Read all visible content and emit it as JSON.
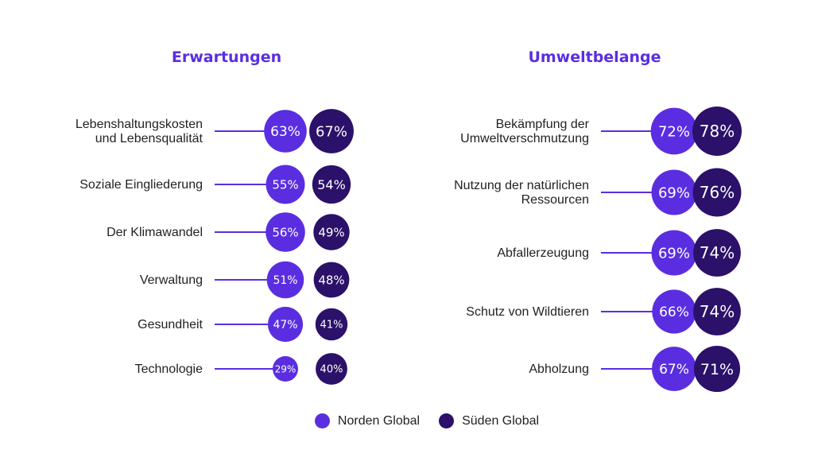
{
  "chart_data": {
    "type": "bubble",
    "series": [
      {
        "name": "Norden Global",
        "color": "#5a2ee0"
      },
      {
        "name": "Süden Global",
        "color": "#2b1169"
      }
    ],
    "panels": [
      {
        "title": "Erwartungen",
        "categories": [
          {
            "label": [
              "Lebenshaltungskosten",
              "und Lebensqualität"
            ],
            "north": 63,
            "south": 67
          },
          {
            "label": [
              "Soziale Eingliederung"
            ],
            "north": 55,
            "south": 54
          },
          {
            "label": [
              "Der Klimawandel"
            ],
            "north": 56,
            "south": 49
          },
          {
            "label": [
              "Verwaltung"
            ],
            "north": 51,
            "south": 48
          },
          {
            "label": [
              "Gesundheit"
            ],
            "north": 47,
            "south": 41
          },
          {
            "label": [
              "Technologie"
            ],
            "north": 29,
            "south": 40
          }
        ]
      },
      {
        "title": "Umweltbelange",
        "categories": [
          {
            "label": [
              "Bekämpfung der",
              "Umweltverschmutzung"
            ],
            "north": 72,
            "south": 78
          },
          {
            "label": [
              "Nutzung der natürlichen",
              "Ressourcen"
            ],
            "north": 69,
            "south": 76
          },
          {
            "label": [
              "Abfallerzeugung"
            ],
            "north": 69,
            "south": 74
          },
          {
            "label": [
              "Schutz von Wildtieren"
            ],
            "north": 66,
            "south": 74
          },
          {
            "label": [
              "Abholzung"
            ],
            "north": 67,
            "south": 71
          }
        ]
      }
    ]
  },
  "legend": {
    "north_label": "Norden Global",
    "south_label": "Süden Global"
  }
}
